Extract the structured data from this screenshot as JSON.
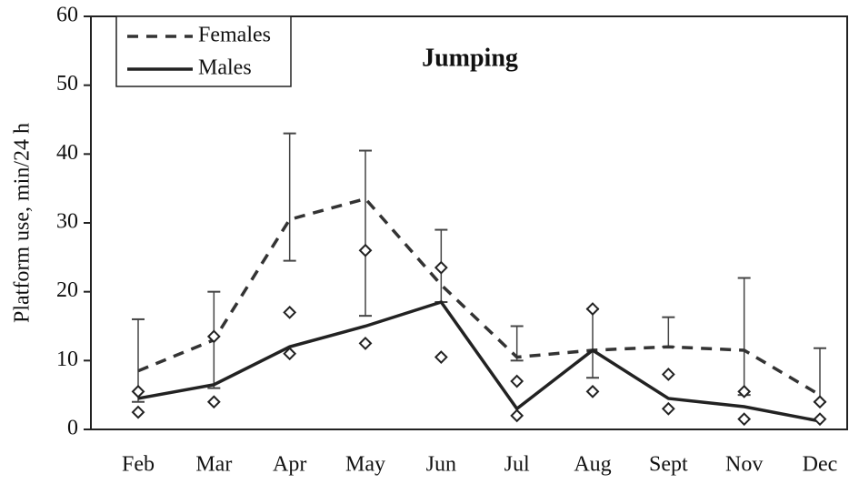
{
  "chart_data": {
    "type": "line",
    "title": "Jumping",
    "y_label": "Platform use, min/24 h",
    "categories": [
      "Feb",
      "Mar",
      "Apr",
      "May",
      "Jun",
      "Jul",
      "Aug",
      "Sept",
      "Nov",
      "Dec"
    ],
    "series": [
      {
        "name": "Females",
        "color": "#333333",
        "dash": true,
        "values": [
          8.5,
          13,
          30.5,
          33.5,
          21,
          10.5,
          11.5,
          12,
          11.5,
          5
        ]
      },
      {
        "name": "Males",
        "color": "#222222",
        "dash": false,
        "values": [
          4.5,
          6.5,
          12,
          15,
          18.5,
          3,
          11.5,
          4.5,
          3.3,
          1.2
        ]
      }
    ],
    "error_bars": {
      "low": [
        4,
        6,
        24.5,
        16.5,
        18.5,
        10,
        7.5,
        12,
        5,
        4
      ],
      "high": [
        16,
        20,
        43,
        40.5,
        29,
        15,
        17.5,
        16.3,
        22,
        11.8
      ]
    },
    "individual_points": {
      "upper": [
        5.5,
        13.5,
        17,
        26,
        23.5,
        7,
        17.5,
        8,
        5.5,
        4
      ],
      "lower": [
        2.5,
        4,
        11,
        12.5,
        10.5,
        2,
        5.5,
        3,
        1.5,
        1.5
      ]
    },
    "ylim": [
      0,
      60
    ],
    "yticks": [
      0,
      10,
      20,
      30,
      40,
      50,
      60
    ],
    "grid": false
  }
}
